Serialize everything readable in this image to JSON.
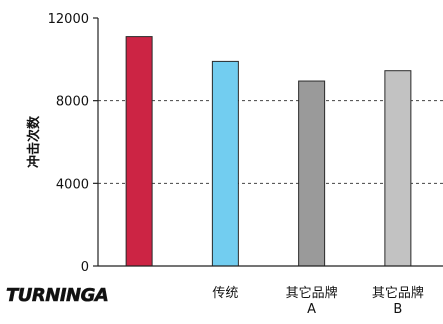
{
  "chart_data": {
    "type": "bar",
    "categories": [
      {
        "brand": "TURNINGA",
        "is_logo": true
      },
      {
        "lines": [
          "传统"
        ]
      },
      {
        "lines": [
          "其它品牌",
          "A"
        ]
      },
      {
        "lines": [
          "其它品牌",
          "B"
        ]
      }
    ],
    "values": [
      11100,
      9900,
      8950,
      9450
    ],
    "colors": [
      "#cc2444",
      "#72cdf0",
      "#9a9a9a",
      "#c2c2c2"
    ],
    "ylabel": "冲击次数",
    "ylim": [
      0,
      12000
    ],
    "yticks": [
      0,
      4000,
      8000,
      12000
    ],
    "grid": "dashed-horizontal"
  }
}
